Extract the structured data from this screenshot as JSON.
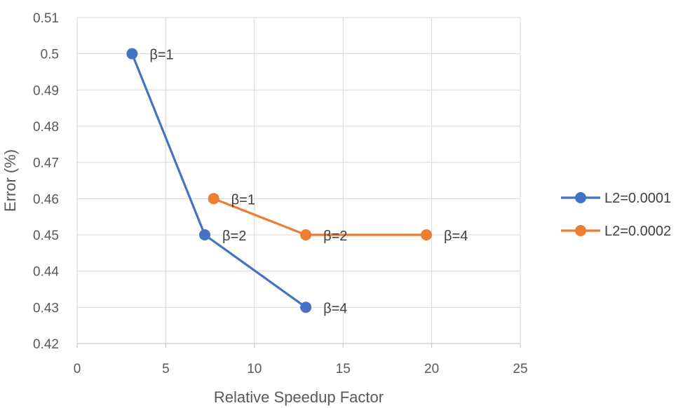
{
  "chart_data": {
    "type": "scatter",
    "title": "",
    "xlabel": "Relative Speedup Factor",
    "ylabel": "Error (%)",
    "xlim": [
      0,
      25
    ],
    "ylim": [
      0.42,
      0.51
    ],
    "x_ticks": [
      0,
      5,
      10,
      15,
      20,
      25
    ],
    "y_ticks": [
      0.42,
      0.43,
      0.44,
      0.45,
      0.46,
      0.47,
      0.48,
      0.49,
      0.5,
      0.51
    ],
    "x_tick_labels": [
      "0",
      "5",
      "10",
      "15",
      "20",
      "25"
    ],
    "y_tick_labels": [
      "0.42",
      "0.43",
      "0.44",
      "0.45",
      "0.46",
      "0.47",
      "0.48",
      "0.49",
      "0.5",
      "0.51"
    ],
    "grid": true,
    "legend_position": "right",
    "series": [
      {
        "name": "L2=0.0001",
        "color": "#4472C4",
        "points": [
          {
            "x": 3.1,
            "y": 0.5,
            "label": "β=1"
          },
          {
            "x": 7.2,
            "y": 0.45,
            "label": "β=2"
          },
          {
            "x": 12.9,
            "y": 0.43,
            "label": "β=4"
          }
        ]
      },
      {
        "name": "L2=0.0002",
        "color": "#ED7D31",
        "points": [
          {
            "x": 7.7,
            "y": 0.46,
            "label": "β=1"
          },
          {
            "x": 12.9,
            "y": 0.45,
            "label": "β=2"
          },
          {
            "x": 19.7,
            "y": 0.45,
            "label": "β=4"
          }
        ]
      }
    ]
  }
}
